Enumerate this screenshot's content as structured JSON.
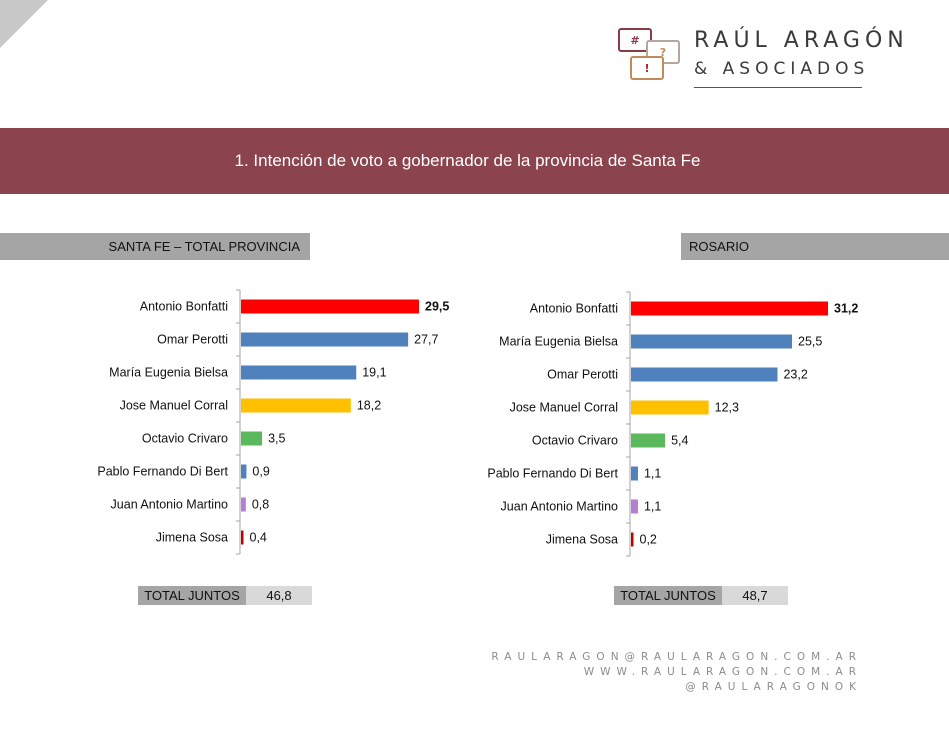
{
  "brand": {
    "name": "RAÚL ARAGÓN",
    "sub": "& ASOCIADOS",
    "icons": {
      "hash": "#",
      "question": "?",
      "exclaim": "!"
    },
    "color": "#8b434d"
  },
  "title": "1. Intención de voto a gobernador de la provincia de Santa Fe",
  "sections": {
    "left": "SANTA FE – TOTAL PROVINCIA",
    "right": "ROSARIO"
  },
  "totals": {
    "left": {
      "label": "TOTAL JUNTOS",
      "value": "46,8"
    },
    "right": {
      "label": "TOTAL JUNTOS",
      "value": "48,7"
    }
  },
  "contact": {
    "email": "RAULARAGON@RAULARAGON.COM.AR",
    "web": "WWW.RAULARAGON.COM.AR",
    "handle": "@RAULARAGONOK"
  },
  "chart_data": [
    {
      "type": "bar",
      "orientation": "horizontal",
      "title": "SANTA FE – TOTAL PROVINCIA",
      "categories": [
        "Antonio Bonfatti",
        "Omar Perotti",
        "María Eugenia Bielsa",
        "Jose Manuel Corral",
        "Octavio Crivaro",
        "Pablo Fernando Di Bert",
        "Juan Antonio Martino",
        "Jimena Sosa"
      ],
      "values": [
        29.5,
        27.7,
        19.1,
        18.2,
        3.5,
        0.9,
        0.8,
        0.4
      ],
      "labels": [
        "29,5",
        "27,7",
        "19,1",
        "18,2",
        "3,5",
        "0,9",
        "0,8",
        "0,4"
      ],
      "colors": [
        "#ff0000",
        "#4f81bd",
        "#4f81bd",
        "#ffc000",
        "#5cb85c",
        "#4f81bd",
        "#b57ed4",
        "#c00000"
      ],
      "bold": [
        true,
        false,
        false,
        false,
        false,
        false,
        false,
        false
      ],
      "xlim": [
        0,
        30
      ]
    },
    {
      "type": "bar",
      "orientation": "horizontal",
      "title": "ROSARIO",
      "categories": [
        "Antonio Bonfatti",
        "María Eugenia Bielsa",
        "Omar Perotti",
        "Jose Manuel Corral",
        "Octavio Crivaro",
        "Pablo Fernando Di Bert",
        "Juan Antonio Martino",
        "Jimena Sosa"
      ],
      "values": [
        31.2,
        25.5,
        23.2,
        12.3,
        5.4,
        1.1,
        1.1,
        0.2
      ],
      "labels": [
        "31,2",
        "25,5",
        "23,2",
        "12,3",
        "5,4",
        "1,1",
        "1,1",
        "0,2"
      ],
      "colors": [
        "#ff0000",
        "#4f81bd",
        "#4f81bd",
        "#ffc000",
        "#5cb85c",
        "#4f81bd",
        "#b57ed4",
        "#c00000"
      ],
      "bold": [
        true,
        false,
        false,
        false,
        false,
        false,
        false,
        false
      ],
      "xlim": [
        0,
        32
      ]
    }
  ]
}
